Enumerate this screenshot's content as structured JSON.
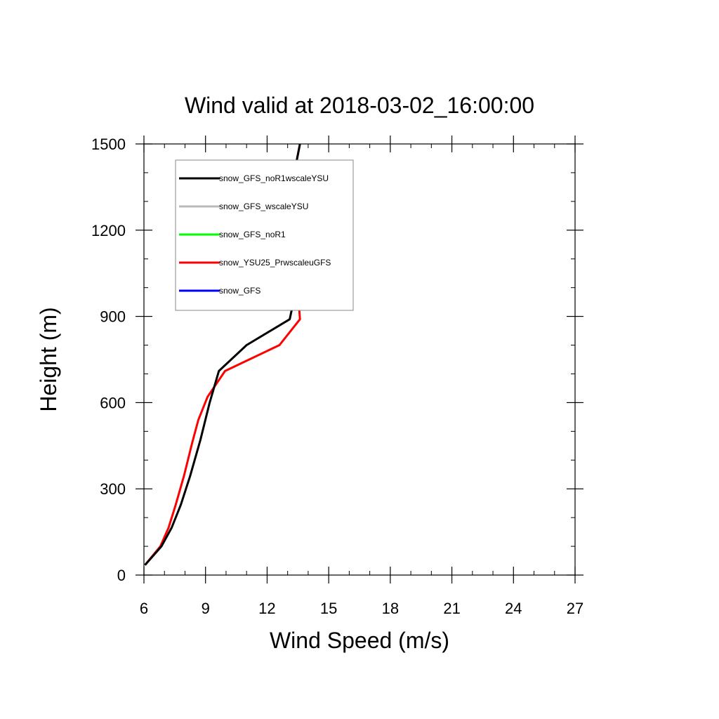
{
  "chart_data": {
    "type": "line",
    "title": "Wind valid at 2018-03-02_16:00:00",
    "xlabel": "Wind Speed (m/s)",
    "ylabel": "Height (m)",
    "xlim": [
      6,
      27
    ],
    "ylim": [
      0,
      1500
    ],
    "x_ticks": [
      6,
      9,
      12,
      15,
      18,
      21,
      24,
      27
    ],
    "x_tick_labels": [
      "6",
      "9",
      "12",
      "15",
      "18",
      "21",
      "24",
      "27"
    ],
    "y_ticks": [
      0,
      300,
      600,
      900,
      1200,
      1500
    ],
    "y_tick_labels": [
      "0",
      "300",
      "600",
      "900",
      "1200",
      "1500"
    ],
    "x_minor_step": 1,
    "y_minor_step": 100,
    "grid": false,
    "legend_position": "top-left",
    "series": [
      {
        "name": "snow_GFS_noR1wscaleYSU",
        "color": "#000000",
        "points": [
          [
            6.05,
            35
          ],
          [
            6.85,
            100
          ],
          [
            7.35,
            165
          ],
          [
            7.8,
            245
          ],
          [
            8.25,
            345
          ],
          [
            8.75,
            470
          ],
          [
            9.2,
            600
          ],
          [
            9.65,
            710
          ],
          [
            11.0,
            800
          ],
          [
            13.1,
            890
          ],
          [
            13.4,
            990
          ],
          [
            13.2,
            1100
          ],
          [
            13.0,
            1190
          ],
          [
            13.0,
            1290
          ],
          [
            13.3,
            1390
          ],
          [
            13.6,
            1500
          ]
        ]
      },
      {
        "name": "snow_GFS_wscaleYSU",
        "color": "#bbbbbb",
        "points": []
      },
      {
        "name": "snow_GFS_noR1",
        "color": "#00ff00",
        "points": []
      },
      {
        "name": "snow_YSU25_PrwscaleuGFS",
        "color": "#ff0000",
        "points": [
          [
            6.05,
            35
          ],
          [
            6.8,
            100
          ],
          [
            7.2,
            165
          ],
          [
            7.55,
            245
          ],
          [
            7.95,
            345
          ],
          [
            8.35,
            460
          ],
          [
            8.65,
            540
          ],
          [
            9.1,
            620
          ],
          [
            9.95,
            710
          ],
          [
            12.6,
            800
          ],
          [
            13.6,
            890
          ],
          [
            13.5,
            990
          ],
          [
            13.3,
            1100
          ],
          [
            13.1,
            1190
          ],
          [
            13.0,
            1290
          ],
          [
            13.3,
            1390
          ],
          [
            13.6,
            1500
          ]
        ]
      },
      {
        "name": "snow_GFS",
        "color": "#0000ff",
        "points": []
      }
    ]
  }
}
